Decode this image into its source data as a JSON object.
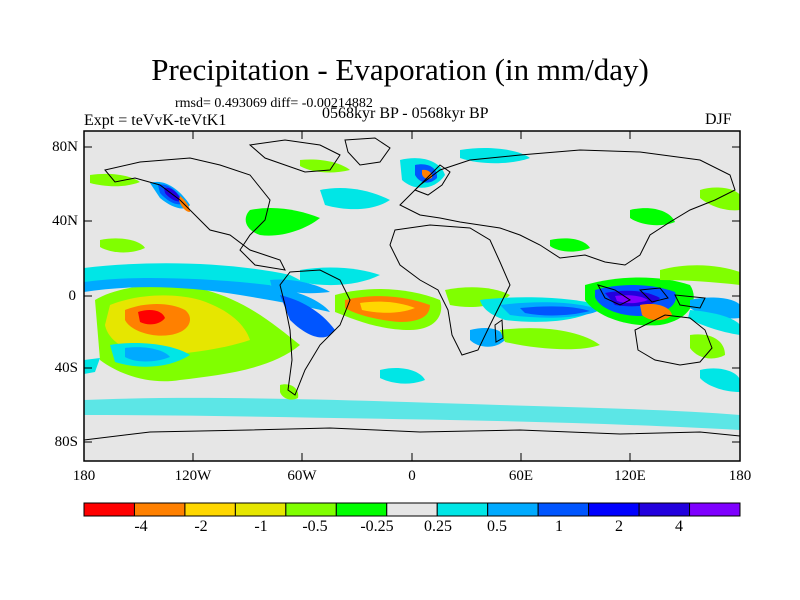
{
  "title": "Precipitation - Evaporation (in mm/day)",
  "stats": "rmsd= 0.493069 diff= -0.00214882",
  "experiment": "Expt = teVvK-teVtK1",
  "period": "0568kyr BP - 0568kyr BP",
  "season": "DJF",
  "map": {
    "lat_labels": [
      "80N",
      "40N",
      "0",
      "40S",
      "80S"
    ],
    "lon_labels": [
      "180",
      "120W",
      "60W",
      "0",
      "60E",
      "120E",
      "180"
    ]
  },
  "colorbar": {
    "colors": [
      "#ff0000",
      "#ff8000",
      "#ffd700",
      "#e6e600",
      "#80ff00",
      "#00ff00",
      "#e6e6e6",
      "#00e6e6",
      "#00aaff",
      "#0055ff",
      "#0000ff",
      "#2200dd",
      "#7f00ff"
    ],
    "labels": [
      "-4",
      "-2",
      "-1",
      "-0.5",
      "-0.25",
      "0.25",
      "0.5",
      "1",
      "2",
      "4"
    ]
  }
}
